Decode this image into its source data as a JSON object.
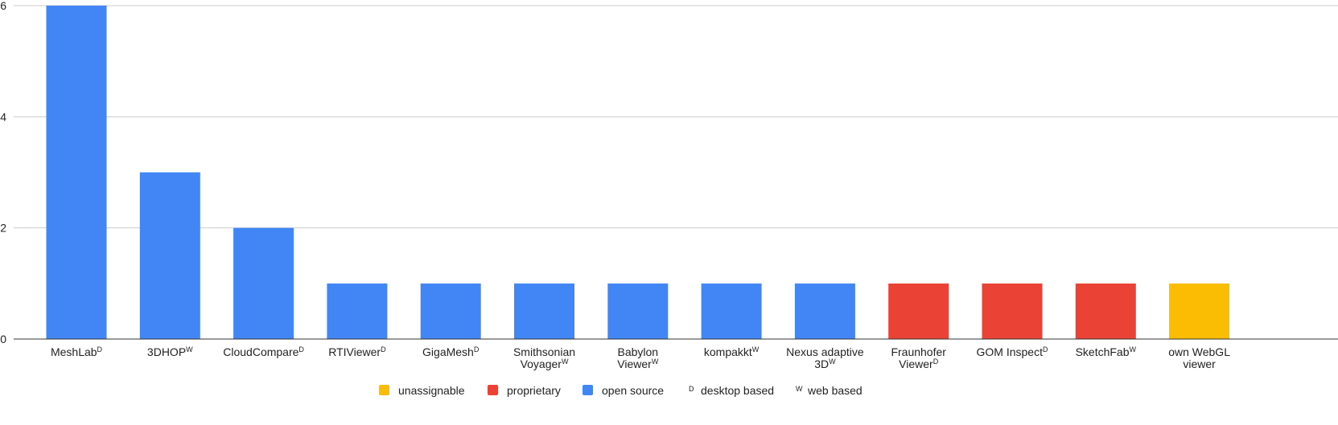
{
  "chart_data": {
    "type": "bar",
    "title": "",
    "xlabel": "",
    "ylabel": "",
    "ylim": [
      0,
      6
    ],
    "yticks": [
      0,
      2,
      4,
      6
    ],
    "grid": true,
    "legend_position": "bottom",
    "categories": [
      {
        "label": "MeshLab",
        "sup": "D",
        "lines": [
          "MeshLab"
        ],
        "value": 6,
        "class": "open source"
      },
      {
        "label": "3DHOP",
        "sup": "W",
        "lines": [
          "3DHOP"
        ],
        "value": 3,
        "class": "open source"
      },
      {
        "label": "CloudCompare",
        "sup": "D",
        "lines": [
          "CloudCompare"
        ],
        "value": 2,
        "class": "open source"
      },
      {
        "label": "RTIViewer",
        "sup": "D",
        "lines": [
          "RTIViewer"
        ],
        "value": 1,
        "class": "open source"
      },
      {
        "label": "GigaMesh",
        "sup": "D",
        "lines": [
          "GigaMesh"
        ],
        "value": 1,
        "class": "open source"
      },
      {
        "label": "Smithsonian Voyager",
        "sup": "W",
        "lines": [
          "Smithsonian",
          "Voyager"
        ],
        "value": 1,
        "class": "open source"
      },
      {
        "label": "Babylon Viewer",
        "sup": "W",
        "lines": [
          "Babylon",
          "Viewer"
        ],
        "value": 1,
        "class": "open source"
      },
      {
        "label": "kompakkt",
        "sup": "W",
        "lines": [
          "kompakkt"
        ],
        "value": 1,
        "class": "open source"
      },
      {
        "label": "Nexus adaptive 3D",
        "sup": "W",
        "lines": [
          "Nexus adaptive",
          "3D"
        ],
        "value": 1,
        "class": "open source"
      },
      {
        "label": "Fraunhofer Viewer",
        "sup": "D",
        "lines": [
          "Fraunhofer",
          "Viewer"
        ],
        "value": 1,
        "class": "proprietary"
      },
      {
        "label": "GOM Inspect",
        "sup": "D",
        "lines": [
          "GOM Inspect"
        ],
        "value": 1,
        "class": "proprietary"
      },
      {
        "label": "SketchFab",
        "sup": "W",
        "lines": [
          "SketchFab"
        ],
        "value": 1,
        "class": "proprietary"
      },
      {
        "label": "own WebGL viewer",
        "sup": "",
        "lines": [
          "own WebGL",
          "viewer"
        ],
        "value": 1,
        "class": "unassignable"
      }
    ],
    "colors": {
      "unassignable": "#FBBC04",
      "proprietary": "#EA4335",
      "open source": "#4285F4"
    },
    "legend": [
      {
        "type": "swatch",
        "key": "unassignable",
        "label": "unassignable"
      },
      {
        "type": "swatch",
        "key": "proprietary",
        "label": "proprietary"
      },
      {
        "type": "swatch",
        "key": "open source",
        "label": "open source"
      },
      {
        "type": "marker",
        "marker": "D",
        "label": "desktop based"
      },
      {
        "type": "marker",
        "marker": "W",
        "label": "web based"
      }
    ]
  }
}
